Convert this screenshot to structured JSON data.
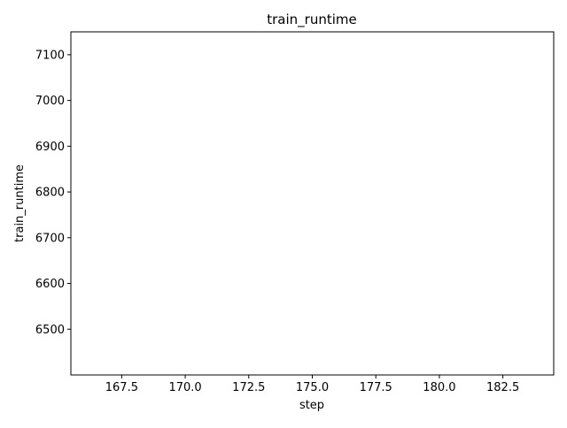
{
  "chart_data": {
    "type": "line",
    "title": "train_runtime",
    "xlabel": "step",
    "ylabel": "train_runtime",
    "xlim": [
      165.5,
      184.5
    ],
    "ylim": [
      6400,
      7150
    ],
    "x_ticks": [
      167.5,
      170.0,
      172.5,
      175.0,
      177.5,
      180.0,
      182.5
    ],
    "x_tick_labels": [
      "167.5",
      "170.0",
      "172.5",
      "175.0",
      "177.5",
      "180.0",
      "182.5"
    ],
    "y_ticks": [
      6500,
      6600,
      6700,
      6800,
      6900,
      7000,
      7100
    ],
    "y_tick_labels": [
      "6500",
      "6600",
      "6700",
      "6800",
      "6900",
      "7000",
      "7100"
    ],
    "grid": false,
    "series": []
  }
}
